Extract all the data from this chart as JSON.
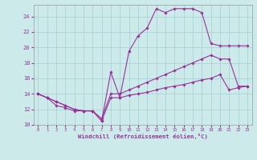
{
  "xlabel": "Windchill (Refroidissement éolien,°C)",
  "background_color": "#cceaea",
  "grid_color": "#aad4d4",
  "line_color": "#993399",
  "xlim": [
    -0.5,
    23.5
  ],
  "ylim": [
    10,
    25.5
  ],
  "yticks": [
    10,
    12,
    14,
    16,
    18,
    20,
    22,
    24
  ],
  "xticks": [
    0,
    1,
    2,
    3,
    4,
    5,
    6,
    7,
    8,
    9,
    10,
    11,
    12,
    13,
    14,
    15,
    16,
    17,
    18,
    19,
    20,
    21,
    22,
    23
  ],
  "l1_y": [
    14.0,
    13.5,
    13.0,
    12.5,
    12.0,
    11.8,
    11.8,
    10.5,
    13.5,
    13.5,
    13.8,
    14.0,
    14.2,
    14.5,
    14.8,
    15.0,
    15.2,
    15.5,
    15.8,
    16.0,
    16.5,
    14.5,
    14.8,
    15.0
  ],
  "l2_y": [
    14.0,
    13.5,
    13.0,
    12.5,
    12.0,
    11.8,
    11.8,
    10.8,
    14.0,
    14.0,
    14.5,
    15.0,
    15.5,
    16.0,
    16.5,
    17.0,
    17.5,
    18.0,
    18.5,
    19.0,
    18.5,
    18.5,
    15.0,
    15.0
  ],
  "l3_y": [
    14.0,
    13.5,
    12.5,
    12.2,
    11.8,
    11.8,
    11.8,
    10.5,
    16.8,
    13.5,
    19.5,
    21.5,
    22.5,
    25.0,
    24.5,
    25.0,
    25.0,
    25.0,
    24.5,
    20.5,
    20.2,
    20.2,
    20.2,
    20.2
  ]
}
